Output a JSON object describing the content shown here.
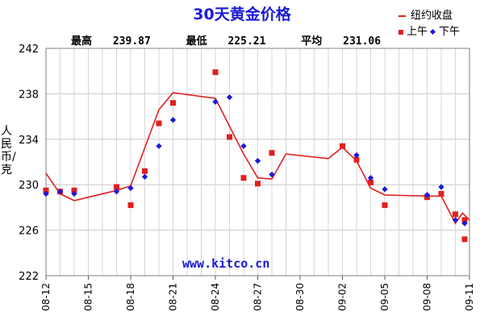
{
  "chart_data": {
    "type": "line",
    "title": "30天黄金价格",
    "stats": {
      "high_label": "最高",
      "high": "239.87",
      "low_label": "最低",
      "low": "225.21",
      "avg_label": "平均",
      "avg": "231.06"
    },
    "legend": {
      "close_label": "纽约收盘",
      "am_label": "上午",
      "pm_label": "下午",
      "placement": "top-right"
    },
    "ylabel": "人民币/克",
    "watermark": "www.kitco.cn",
    "ylim": [
      222,
      242
    ],
    "yticks": [
      "242",
      "238",
      "234",
      "230",
      "226",
      "222"
    ],
    "ytick_values": [
      242,
      238,
      234,
      230,
      226,
      222
    ],
    "xlim": [
      0,
      30
    ],
    "xticks": [
      {
        "label": "08-12",
        "day": 0
      },
      {
        "label": "08-15",
        "day": 3
      },
      {
        "label": "08-18",
        "day": 6
      },
      {
        "label": "08-21",
        "day": 9
      },
      {
        "label": "08-24",
        "day": 12
      },
      {
        "label": "08-27",
        "day": 15
      },
      {
        "label": "08-30",
        "day": 18
      },
      {
        "label": "09-02",
        "day": 21
      },
      {
        "label": "09-05",
        "day": 24
      },
      {
        "label": "09-08",
        "day": 27
      },
      {
        "label": "09-11",
        "day": 30
      }
    ],
    "grid": true,
    "series": [
      {
        "name": "纽约收盘",
        "kind": "line",
        "color": "#e02020",
        "points": [
          [
            0,
            231.0
          ],
          [
            1,
            229.2
          ],
          [
            2,
            228.6
          ],
          [
            5,
            229.5
          ],
          [
            6,
            229.9
          ],
          [
            8,
            236.6
          ],
          [
            9,
            238.1
          ],
          [
            12,
            237.6
          ],
          [
            14,
            232.7
          ],
          [
            15,
            230.6
          ],
          [
            16,
            230.5
          ],
          [
            17,
            232.7
          ],
          [
            20,
            232.3
          ],
          [
            21,
            233.3
          ],
          [
            22,
            232.1
          ],
          [
            23,
            229.7
          ],
          [
            24,
            229.1
          ],
          [
            27,
            229.0
          ],
          [
            28,
            229.0
          ],
          [
            29,
            226.6
          ],
          [
            29.5,
            227.5
          ],
          [
            30,
            226.9
          ]
        ]
      },
      {
        "name": "上午",
        "kind": "scatter",
        "marker": "square",
        "color": "#e02020",
        "points": [
          [
            0,
            229.5
          ],
          [
            1,
            229.4
          ],
          [
            2,
            229.5
          ],
          [
            5,
            229.8
          ],
          [
            6,
            228.2
          ],
          [
            7,
            231.2
          ],
          [
            8,
            235.4
          ],
          [
            9,
            237.2
          ],
          [
            12,
            239.9
          ],
          [
            13,
            234.2
          ],
          [
            14,
            230.6
          ],
          [
            15,
            230.1
          ],
          [
            16,
            232.8
          ],
          [
            21,
            233.4
          ],
          [
            22,
            232.2
          ],
          [
            23,
            230.2
          ],
          [
            24,
            228.2
          ],
          [
            27,
            228.9
          ],
          [
            28,
            229.2
          ],
          [
            29,
            227.4
          ],
          [
            30,
            226.9
          ],
          [
            31,
            225.2
          ]
        ]
      },
      {
        "name": "下午",
        "kind": "scatter",
        "marker": "diamond",
        "color": "#1a1ad6",
        "points": [
          [
            0,
            229.2
          ],
          [
            1,
            229.4
          ],
          [
            2,
            229.2
          ],
          [
            5,
            229.4
          ],
          [
            6,
            229.7
          ],
          [
            7,
            230.7
          ],
          [
            8,
            233.4
          ],
          [
            9,
            235.7
          ],
          [
            12,
            237.3
          ],
          [
            13,
            237.7
          ],
          [
            14,
            233.4
          ],
          [
            15,
            232.1
          ],
          [
            16,
            230.9
          ],
          [
            22,
            232.6
          ],
          [
            23,
            230.6
          ],
          [
            24,
            229.6
          ],
          [
            27,
            229.1
          ],
          [
            28,
            229.8
          ],
          [
            29,
            226.9
          ],
          [
            30,
            226.6
          ]
        ]
      }
    ]
  }
}
